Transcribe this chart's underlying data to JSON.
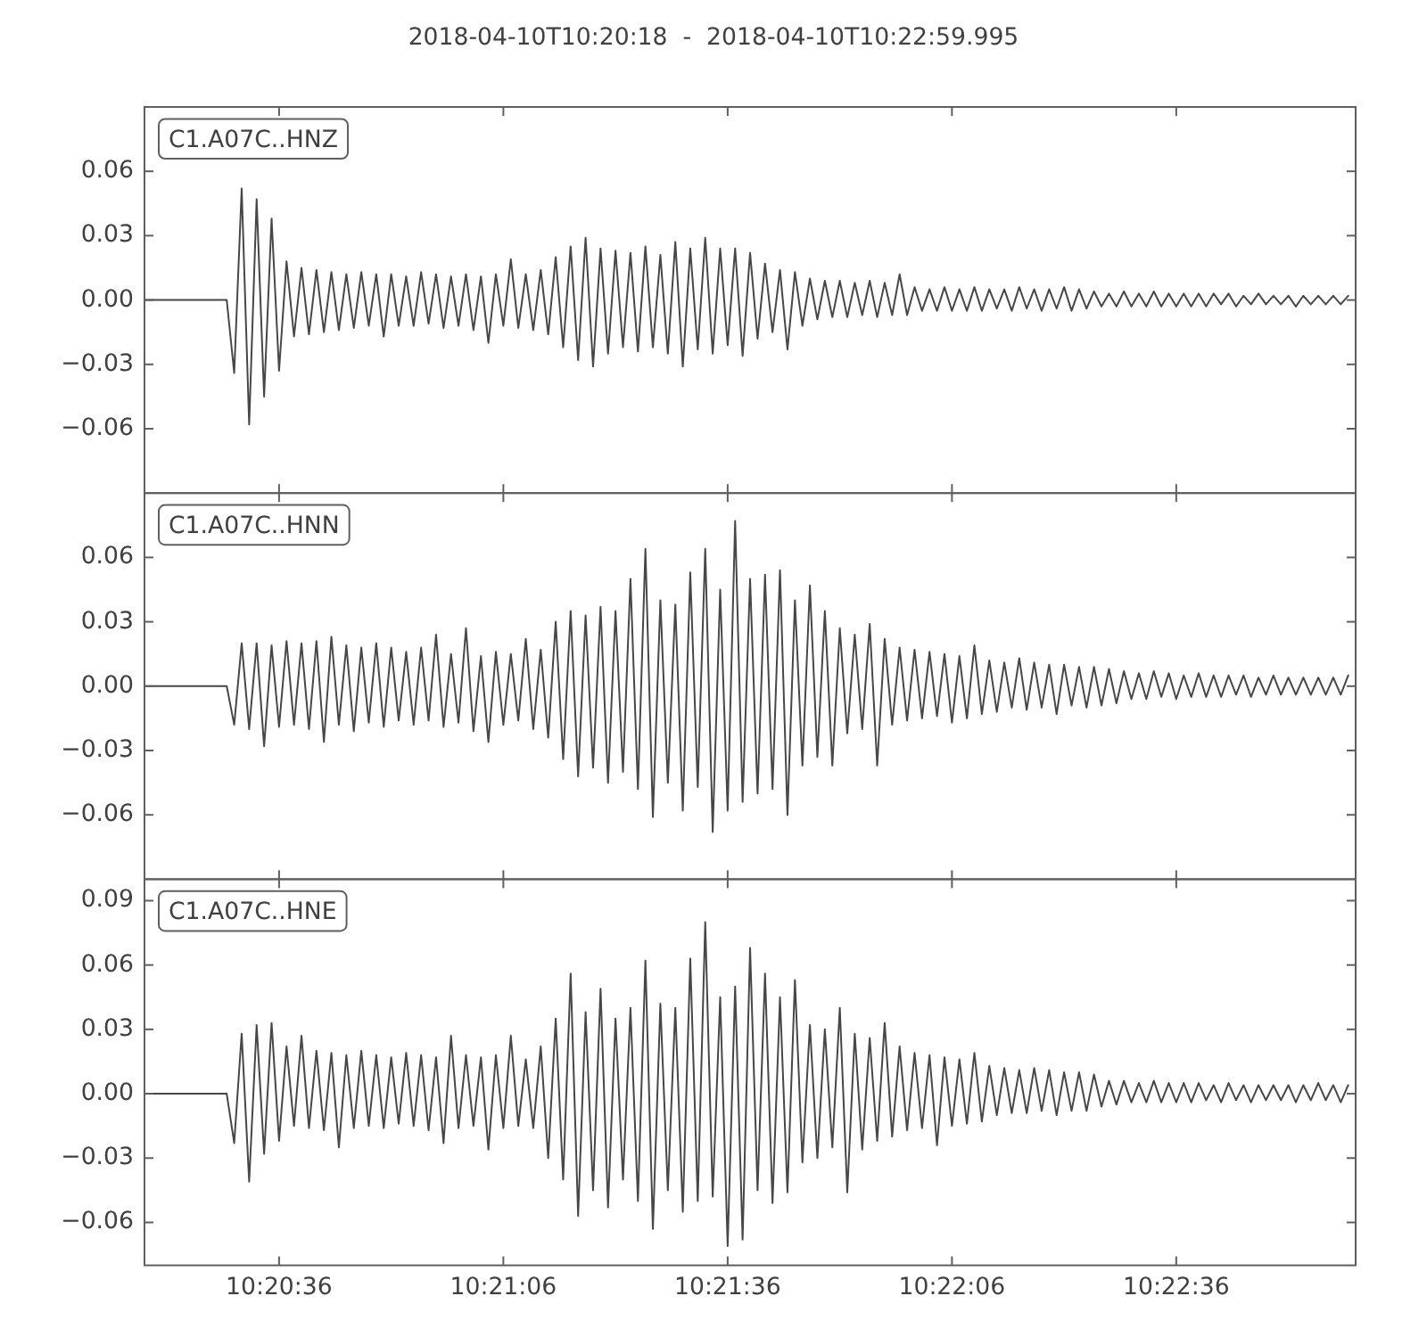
{
  "chart_data": [
    {
      "type": "line",
      "title": "2018-04-10T10:20:18  -  2018-04-10T10:22:59.995",
      "annotations": [
        "C1.A07C..HNZ"
      ],
      "xlim": [
        "2018-04-10T10:20:18",
        "2018-04-10T10:22:59.995"
      ],
      "xticks": [
        {
          "value": "2018-04-10T10:20:36",
          "label": null
        },
        {
          "value": "2018-04-10T10:21:06",
          "label": null
        },
        {
          "value": "2018-04-10T10:21:36",
          "label": null
        },
        {
          "value": "2018-04-10T10:22:06",
          "label": null
        },
        {
          "value": "2018-04-10T10:22:36",
          "label": null
        }
      ],
      "ylim": [
        -0.09,
        0.09
      ],
      "yticks": [
        {
          "value": -0.06,
          "label": "−0.06"
        },
        {
          "value": -0.03,
          "label": "−0.03"
        },
        {
          "value": 0,
          "label": "0.00"
        },
        {
          "value": 0.03,
          "label": "0.03"
        },
        {
          "value": 0.06,
          "label": "0.06"
        }
      ],
      "tick_labels": "y",
      "x": [
        "2018-04-10T10:20:18",
        "2018-04-10T10:20:24",
        "2018-04-10T10:20:29",
        "2018-04-10T10:20:30",
        "2018-04-10T10:20:31",
        "2018-04-10T10:20:32",
        "2018-04-10T10:20:33",
        "2018-04-10T10:20:34",
        "2018-04-10T10:20:35",
        "2018-04-10T10:20:36",
        "2018-04-10T10:20:37",
        "2018-04-10T10:20:38",
        "2018-04-10T10:20:39",
        "2018-04-10T10:20:40",
        "2018-04-10T10:20:41",
        "2018-04-10T10:20:42",
        "2018-04-10T10:20:43",
        "2018-04-10T10:20:44",
        "2018-04-10T10:20:45",
        "2018-04-10T10:20:46",
        "2018-04-10T10:20:47",
        "2018-04-10T10:20:48",
        "2018-04-10T10:20:49",
        "2018-04-10T10:20:50",
        "2018-04-10T10:20:51",
        "2018-04-10T10:20:52",
        "2018-04-10T10:20:53",
        "2018-04-10T10:20:54",
        "2018-04-10T10:20:55",
        "2018-04-10T10:20:56",
        "2018-04-10T10:20:57",
        "2018-04-10T10:20:58",
        "2018-04-10T10:20:59",
        "2018-04-10T10:21:00",
        "2018-04-10T10:21:01",
        "2018-04-10T10:21:02",
        "2018-04-10T10:21:03",
        "2018-04-10T10:21:04",
        "2018-04-10T10:21:05",
        "2018-04-10T10:21:06",
        "2018-04-10T10:21:07",
        "2018-04-10T10:21:08",
        "2018-04-10T10:21:09",
        "2018-04-10T10:21:10",
        "2018-04-10T10:21:11",
        "2018-04-10T10:21:12",
        "2018-04-10T10:21:13",
        "2018-04-10T10:21:14",
        "2018-04-10T10:21:15",
        "2018-04-10T10:21:16",
        "2018-04-10T10:21:17",
        "2018-04-10T10:21:18",
        "2018-04-10T10:21:19",
        "2018-04-10T10:21:20",
        "2018-04-10T10:21:21",
        "2018-04-10T10:21:22",
        "2018-04-10T10:21:23",
        "2018-04-10T10:21:24",
        "2018-04-10T10:21:25",
        "2018-04-10T10:21:26",
        "2018-04-10T10:21:27",
        "2018-04-10T10:21:28",
        "2018-04-10T10:21:29",
        "2018-04-10T10:21:30",
        "2018-04-10T10:21:31",
        "2018-04-10T10:21:32",
        "2018-04-10T10:21:33",
        "2018-04-10T10:21:34",
        "2018-04-10T10:21:35",
        "2018-04-10T10:21:36",
        "2018-04-10T10:21:37",
        "2018-04-10T10:21:38",
        "2018-04-10T10:21:39",
        "2018-04-10T10:21:40",
        "2018-04-10T10:21:41",
        "2018-04-10T10:21:42",
        "2018-04-10T10:21:43",
        "2018-04-10T10:21:44",
        "2018-04-10T10:21:45",
        "2018-04-10T10:21:46",
        "2018-04-10T10:21:47",
        "2018-04-10T10:21:48",
        "2018-04-10T10:21:49",
        "2018-04-10T10:21:50",
        "2018-04-10T10:21:51",
        "2018-04-10T10:21:52",
        "2018-04-10T10:21:53",
        "2018-04-10T10:21:54",
        "2018-04-10T10:21:55",
        "2018-04-10T10:21:56",
        "2018-04-10T10:21:57",
        "2018-04-10T10:21:58",
        "2018-04-10T10:21:59",
        "2018-04-10T10:22:00",
        "2018-04-10T10:22:01",
        "2018-04-10T10:22:02",
        "2018-04-10T10:22:03",
        "2018-04-10T10:22:04",
        "2018-04-10T10:22:05",
        "2018-04-10T10:22:06",
        "2018-04-10T10:22:07",
        "2018-04-10T10:22:08",
        "2018-04-10T10:22:09",
        "2018-04-10T10:22:10",
        "2018-04-10T10:22:11",
        "2018-04-10T10:22:12",
        "2018-04-10T10:22:13",
        "2018-04-10T10:22:14",
        "2018-04-10T10:22:15",
        "2018-04-10T10:22:16",
        "2018-04-10T10:22:17",
        "2018-04-10T10:22:18",
        "2018-04-10T10:22:19",
        "2018-04-10T10:22:20",
        "2018-04-10T10:22:21",
        "2018-04-10T10:22:22",
        "2018-04-10T10:22:23",
        "2018-04-10T10:22:24",
        "2018-04-10T10:22:25",
        "2018-04-10T10:22:26",
        "2018-04-10T10:22:27",
        "2018-04-10T10:22:28",
        "2018-04-10T10:22:29",
        "2018-04-10T10:22:30",
        "2018-04-10T10:22:31",
        "2018-04-10T10:22:32",
        "2018-04-10T10:22:33",
        "2018-04-10T10:22:34",
        "2018-04-10T10:22:35",
        "2018-04-10T10:22:36",
        "2018-04-10T10:22:37",
        "2018-04-10T10:22:38",
        "2018-04-10T10:22:39",
        "2018-04-10T10:22:40",
        "2018-04-10T10:22:41",
        "2018-04-10T10:22:42",
        "2018-04-10T10:22:43",
        "2018-04-10T10:22:44",
        "2018-04-10T10:22:45",
        "2018-04-10T10:22:46",
        "2018-04-10T10:22:47",
        "2018-04-10T10:22:48",
        "2018-04-10T10:22:49",
        "2018-04-10T10:22:50",
        "2018-04-10T10:22:51",
        "2018-04-10T10:22:52",
        "2018-04-10T10:22:53",
        "2018-04-10T10:22:54",
        "2018-04-10T10:22:55",
        "2018-04-10T10:22:56",
        "2018-04-10T10:22:57",
        "2018-04-10T10:22:58",
        "2018-04-10T10:22:59"
      ],
      "series": [
        {
          "color": "#474747",
          "values": [
            0,
            0,
            0,
            -0.034,
            0.052,
            -0.058,
            0.047,
            -0.045,
            0.038,
            -0.033,
            0.018,
            -0.017,
            0.015,
            -0.016,
            0.014,
            -0.015,
            0.013,
            -0.014,
            0.012,
            -0.013,
            0.013,
            -0.012,
            0.012,
            -0.017,
            0.012,
            -0.012,
            0.011,
            -0.012,
            0.013,
            -0.011,
            0.012,
            -0.013,
            0.011,
            -0.012,
            0.012,
            -0.014,
            0.011,
            -0.02,
            0.012,
            -0.012,
            0.019,
            -0.013,
            0.012,
            -0.014,
            0.014,
            -0.016,
            0.02,
            -0.022,
            0.025,
            -0.028,
            0.029,
            -0.031,
            0.024,
            -0.025,
            0.023,
            -0.022,
            0.022,
            -0.024,
            0.025,
            -0.022,
            0.021,
            -0.025,
            0.027,
            -0.031,
            0.024,
            -0.023,
            0.029,
            -0.025,
            0.024,
            -0.021,
            0.024,
            -0.026,
            0.022,
            -0.018,
            0.017,
            -0.015,
            0.014,
            -0.023,
            0.013,
            -0.012,
            0.01,
            -0.009,
            0.009,
            -0.008,
            0.009,
            -0.008,
            0.008,
            -0.007,
            0.009,
            -0.008,
            0.008,
            -0.007,
            0.012,
            -0.007,
            0.006,
            -0.005,
            0.005,
            -0.005,
            0.006,
            -0.005,
            0.005,
            -0.005,
            0.006,
            -0.005,
            0.005,
            -0.004,
            0.005,
            -0.005,
            0.006,
            -0.004,
            0.005,
            -0.005,
            0.005,
            -0.004,
            0.006,
            -0.005,
            0.005,
            -0.004,
            0.004,
            -0.003,
            0.003,
            -0.003,
            0.004,
            -0.003,
            0.003,
            -0.003,
            0.004,
            -0.003,
            0.003,
            -0.003,
            0.003,
            -0.003,
            0.003,
            -0.003,
            0.003,
            -0.002,
            0.003,
            -0.003,
            0.002,
            -0.002,
            0.003,
            -0.002,
            0.002,
            -0.002,
            0.002,
            -0.003,
            0.002,
            -0.002,
            0.002,
            -0.002,
            0.002,
            -0.002,
            0.002
          ]
        }
      ]
    },
    {
      "type": "line",
      "annotations": [
        "C1.A07C..HNN"
      ],
      "xlim": [
        "2018-04-10T10:20:18",
        "2018-04-10T10:22:59.995"
      ],
      "xticks": [
        {
          "value": "2018-04-10T10:20:36",
          "label": null
        },
        {
          "value": "2018-04-10T10:21:06",
          "label": null
        },
        {
          "value": "2018-04-10T10:21:36",
          "label": null
        },
        {
          "value": "2018-04-10T10:22:06",
          "label": null
        },
        {
          "value": "2018-04-10T10:22:36",
          "label": null
        }
      ],
      "ylim": [
        -0.09,
        0.09
      ],
      "yticks": [
        {
          "value": -0.06,
          "label": "−0.06"
        },
        {
          "value": -0.03,
          "label": "−0.03"
        },
        {
          "value": 0,
          "label": "0.00"
        },
        {
          "value": 0.03,
          "label": "0.03"
        },
        {
          "value": 0.06,
          "label": "0.06"
        }
      ],
      "tick_labels": "y",
      "x": [
        "2018-04-10T10:20:18",
        "2018-04-10T10:20:24",
        "2018-04-10T10:20:29",
        "2018-04-10T10:20:30",
        "2018-04-10T10:20:31",
        "2018-04-10T10:20:32",
        "2018-04-10T10:20:33",
        "2018-04-10T10:20:34",
        "2018-04-10T10:20:35",
        "2018-04-10T10:20:36",
        "2018-04-10T10:20:37",
        "2018-04-10T10:20:38",
        "2018-04-10T10:20:39",
        "2018-04-10T10:20:40",
        "2018-04-10T10:20:41",
        "2018-04-10T10:20:42",
        "2018-04-10T10:20:43",
        "2018-04-10T10:20:44",
        "2018-04-10T10:20:45",
        "2018-04-10T10:20:46",
        "2018-04-10T10:20:47",
        "2018-04-10T10:20:48",
        "2018-04-10T10:20:49",
        "2018-04-10T10:20:50",
        "2018-04-10T10:20:51",
        "2018-04-10T10:20:52",
        "2018-04-10T10:20:53",
        "2018-04-10T10:20:54",
        "2018-04-10T10:20:55",
        "2018-04-10T10:20:56",
        "2018-04-10T10:20:57",
        "2018-04-10T10:20:58",
        "2018-04-10T10:20:59",
        "2018-04-10T10:21:00",
        "2018-04-10T10:21:01",
        "2018-04-10T10:21:02",
        "2018-04-10T10:21:03",
        "2018-04-10T10:21:04",
        "2018-04-10T10:21:05",
        "2018-04-10T10:21:06",
        "2018-04-10T10:21:07",
        "2018-04-10T10:21:08",
        "2018-04-10T10:21:09",
        "2018-04-10T10:21:10",
        "2018-04-10T10:21:11",
        "2018-04-10T10:21:12",
        "2018-04-10T10:21:13",
        "2018-04-10T10:21:14",
        "2018-04-10T10:21:15",
        "2018-04-10T10:21:16",
        "2018-04-10T10:21:17",
        "2018-04-10T10:21:18",
        "2018-04-10T10:21:19",
        "2018-04-10T10:21:20",
        "2018-04-10T10:21:21",
        "2018-04-10T10:21:22",
        "2018-04-10T10:21:23",
        "2018-04-10T10:21:24",
        "2018-04-10T10:21:25",
        "2018-04-10T10:21:26",
        "2018-04-10T10:21:27",
        "2018-04-10T10:21:28",
        "2018-04-10T10:21:29",
        "2018-04-10T10:21:30",
        "2018-04-10T10:21:31",
        "2018-04-10T10:21:32",
        "2018-04-10T10:21:33",
        "2018-04-10T10:21:34",
        "2018-04-10T10:21:35",
        "2018-04-10T10:21:36",
        "2018-04-10T10:21:37",
        "2018-04-10T10:21:38",
        "2018-04-10T10:21:39",
        "2018-04-10T10:21:40",
        "2018-04-10T10:21:41",
        "2018-04-10T10:21:42",
        "2018-04-10T10:21:43",
        "2018-04-10T10:21:44",
        "2018-04-10T10:21:45",
        "2018-04-10T10:21:46",
        "2018-04-10T10:21:47",
        "2018-04-10T10:21:48",
        "2018-04-10T10:21:49",
        "2018-04-10T10:21:50",
        "2018-04-10T10:21:51",
        "2018-04-10T10:21:52",
        "2018-04-10T10:21:53",
        "2018-04-10T10:21:54",
        "2018-04-10T10:21:55",
        "2018-04-10T10:21:56",
        "2018-04-10T10:21:57",
        "2018-04-10T10:21:58",
        "2018-04-10T10:21:59",
        "2018-04-10T10:22:00",
        "2018-04-10T10:22:01",
        "2018-04-10T10:22:02",
        "2018-04-10T10:22:03",
        "2018-04-10T10:22:04",
        "2018-04-10T10:22:05",
        "2018-04-10T10:22:06",
        "2018-04-10T10:22:07",
        "2018-04-10T10:22:08",
        "2018-04-10T10:22:09",
        "2018-04-10T10:22:10",
        "2018-04-10T10:22:11",
        "2018-04-10T10:22:12",
        "2018-04-10T10:22:13",
        "2018-04-10T10:22:14",
        "2018-04-10T10:22:15",
        "2018-04-10T10:22:16",
        "2018-04-10T10:22:17",
        "2018-04-10T10:22:18",
        "2018-04-10T10:22:19",
        "2018-04-10T10:22:20",
        "2018-04-10T10:22:21",
        "2018-04-10T10:22:22",
        "2018-04-10T10:22:23",
        "2018-04-10T10:22:24",
        "2018-04-10T10:22:25",
        "2018-04-10T10:22:26",
        "2018-04-10T10:22:27",
        "2018-04-10T10:22:28",
        "2018-04-10T10:22:29",
        "2018-04-10T10:22:30",
        "2018-04-10T10:22:31",
        "2018-04-10T10:22:32",
        "2018-04-10T10:22:33",
        "2018-04-10T10:22:34",
        "2018-04-10T10:22:35",
        "2018-04-10T10:22:36",
        "2018-04-10T10:22:37",
        "2018-04-10T10:22:38",
        "2018-04-10T10:22:39",
        "2018-04-10T10:22:40",
        "2018-04-10T10:22:41",
        "2018-04-10T10:22:42",
        "2018-04-10T10:22:43",
        "2018-04-10T10:22:44",
        "2018-04-10T10:22:45",
        "2018-04-10T10:22:46",
        "2018-04-10T10:22:47",
        "2018-04-10T10:22:48",
        "2018-04-10T10:22:49",
        "2018-04-10T10:22:50",
        "2018-04-10T10:22:51",
        "2018-04-10T10:22:52",
        "2018-04-10T10:22:53",
        "2018-04-10T10:22:54",
        "2018-04-10T10:22:55",
        "2018-04-10T10:22:56",
        "2018-04-10T10:22:57",
        "2018-04-10T10:22:58",
        "2018-04-10T10:22:59"
      ],
      "series": [
        {
          "color": "#474747",
          "values": [
            0,
            0,
            0,
            -0.018,
            0.02,
            -0.02,
            0.02,
            -0.028,
            0.019,
            -0.019,
            0.021,
            -0.018,
            0.02,
            -0.02,
            0.021,
            -0.026,
            0.023,
            -0.018,
            0.019,
            -0.021,
            0.018,
            -0.017,
            0.02,
            -0.019,
            0.018,
            -0.016,
            0.016,
            -0.018,
            0.018,
            -0.016,
            0.024,
            -0.019,
            0.015,
            -0.017,
            0.027,
            -0.021,
            0.014,
            -0.026,
            0.016,
            -0.018,
            0.015,
            -0.016,
            0.022,
            -0.02,
            0.017,
            -0.024,
            0.03,
            -0.034,
            0.035,
            -0.042,
            0.033,
            -0.038,
            0.037,
            -0.045,
            0.035,
            -0.04,
            0.05,
            -0.048,
            0.064,
            -0.061,
            0.04,
            -0.045,
            0.038,
            -0.058,
            0.053,
            -0.047,
            0.064,
            -0.068,
            0.045,
            -0.058,
            0.077,
            -0.054,
            0.05,
            -0.05,
            0.052,
            -0.048,
            0.054,
            -0.06,
            0.04,
            -0.037,
            0.047,
            -0.033,
            0.035,
            -0.037,
            0.027,
            -0.022,
            0.024,
            -0.02,
            0.029,
            -0.037,
            0.022,
            -0.018,
            0.018,
            -0.016,
            0.017,
            -0.015,
            0.016,
            -0.014,
            0.015,
            -0.017,
            0.014,
            -0.015,
            0.019,
            -0.013,
            0.012,
            -0.012,
            0.011,
            -0.01,
            0.013,
            -0.011,
            0.011,
            -0.01,
            0.01,
            -0.013,
            0.01,
            -0.009,
            0.009,
            -0.01,
            0.009,
            -0.009,
            0.008,
            -0.008,
            0.007,
            -0.006,
            0.006,
            -0.006,
            0.007,
            -0.005,
            0.006,
            -0.006,
            0.005,
            -0.005,
            0.006,
            -0.005,
            0.005,
            -0.005,
            0.005,
            -0.004,
            0.005,
            -0.005,
            0.004,
            -0.004,
            0.005,
            -0.004,
            0.004,
            -0.004,
            0.004,
            -0.004,
            0.004,
            -0.004,
            0.004,
            -0.004,
            0.005
          ]
        }
      ]
    },
    {
      "type": "line",
      "annotations": [
        "C1.A07C..HNE"
      ],
      "xlim": [
        "2018-04-10T10:20:18",
        "2018-04-10T10:22:59.995"
      ],
      "xticks": [
        {
          "value": "2018-04-10T10:20:36",
          "label": "10:20:36"
        },
        {
          "value": "2018-04-10T10:21:06",
          "label": "10:21:06"
        },
        {
          "value": "2018-04-10T10:21:36",
          "label": "10:21:36"
        },
        {
          "value": "2018-04-10T10:22:06",
          "label": "10:22:06"
        },
        {
          "value": "2018-04-10T10:22:36",
          "label": "10:22:36"
        }
      ],
      "ylim": [
        -0.08,
        0.1
      ],
      "yticks": [
        {
          "value": -0.06,
          "label": "−0.06"
        },
        {
          "value": -0.03,
          "label": "−0.03"
        },
        {
          "value": 0,
          "label": "0.00"
        },
        {
          "value": 0.03,
          "label": "0.03"
        },
        {
          "value": 0.06,
          "label": "0.06"
        },
        {
          "value": 0.09,
          "label": "0.09"
        }
      ],
      "x": [
        "2018-04-10T10:20:18",
        "2018-04-10T10:20:24",
        "2018-04-10T10:20:29",
        "2018-04-10T10:20:30",
        "2018-04-10T10:20:31",
        "2018-04-10T10:20:32",
        "2018-04-10T10:20:33",
        "2018-04-10T10:20:34",
        "2018-04-10T10:20:35",
        "2018-04-10T10:20:36",
        "2018-04-10T10:20:37",
        "2018-04-10T10:20:38",
        "2018-04-10T10:20:39",
        "2018-04-10T10:20:40",
        "2018-04-10T10:20:41",
        "2018-04-10T10:20:42",
        "2018-04-10T10:20:43",
        "2018-04-10T10:20:44",
        "2018-04-10T10:20:45",
        "2018-04-10T10:20:46",
        "2018-04-10T10:20:47",
        "2018-04-10T10:20:48",
        "2018-04-10T10:20:49",
        "2018-04-10T10:20:50",
        "2018-04-10T10:20:51",
        "2018-04-10T10:20:52",
        "2018-04-10T10:20:53",
        "2018-04-10T10:20:54",
        "2018-04-10T10:20:55",
        "2018-04-10T10:20:56",
        "2018-04-10T10:20:57",
        "2018-04-10T10:20:58",
        "2018-04-10T10:20:59",
        "2018-04-10T10:21:00",
        "2018-04-10T10:21:01",
        "2018-04-10T10:21:02",
        "2018-04-10T10:21:03",
        "2018-04-10T10:21:04",
        "2018-04-10T10:21:05",
        "2018-04-10T10:21:06",
        "2018-04-10T10:21:07",
        "2018-04-10T10:21:08",
        "2018-04-10T10:21:09",
        "2018-04-10T10:21:10",
        "2018-04-10T10:21:11",
        "2018-04-10T10:21:12",
        "2018-04-10T10:21:13",
        "2018-04-10T10:21:14",
        "2018-04-10T10:21:15",
        "2018-04-10T10:21:16",
        "2018-04-10T10:21:17",
        "2018-04-10T10:21:18",
        "2018-04-10T10:21:19",
        "2018-04-10T10:21:20",
        "2018-04-10T10:21:21",
        "2018-04-10T10:21:22",
        "2018-04-10T10:21:23",
        "2018-04-10T10:21:24",
        "2018-04-10T10:21:25",
        "2018-04-10T10:21:26",
        "2018-04-10T10:21:27",
        "2018-04-10T10:21:28",
        "2018-04-10T10:21:29",
        "2018-04-10T10:21:30",
        "2018-04-10T10:21:31",
        "2018-04-10T10:21:32",
        "2018-04-10T10:21:33",
        "2018-04-10T10:21:34",
        "2018-04-10T10:21:35",
        "2018-04-10T10:21:36",
        "2018-04-10T10:21:37",
        "2018-04-10T10:21:38",
        "2018-04-10T10:21:39",
        "2018-04-10T10:21:40",
        "2018-04-10T10:21:41",
        "2018-04-10T10:21:42",
        "2018-04-10T10:21:43",
        "2018-04-10T10:21:44",
        "2018-04-10T10:21:45",
        "2018-04-10T10:21:46",
        "2018-04-10T10:21:47",
        "2018-04-10T10:21:48",
        "2018-04-10T10:21:49",
        "2018-04-10T10:21:50",
        "2018-04-10T10:21:51",
        "2018-04-10T10:21:52",
        "2018-04-10T10:21:53",
        "2018-04-10T10:21:54",
        "2018-04-10T10:21:55",
        "2018-04-10T10:21:56",
        "2018-04-10T10:21:57",
        "2018-04-10T10:21:58",
        "2018-04-10T10:21:59",
        "2018-04-10T10:22:00",
        "2018-04-10T10:22:01",
        "2018-04-10T10:22:02",
        "2018-04-10T10:22:03",
        "2018-04-10T10:22:04",
        "2018-04-10T10:22:05",
        "2018-04-10T10:22:06",
        "2018-04-10T10:22:07",
        "2018-04-10T10:22:08",
        "2018-04-10T10:22:09",
        "2018-04-10T10:22:10",
        "2018-04-10T10:22:11",
        "2018-04-10T10:22:12",
        "2018-04-10T10:22:13",
        "2018-04-10T10:22:14",
        "2018-04-10T10:22:15",
        "2018-04-10T10:22:16",
        "2018-04-10T10:22:17",
        "2018-04-10T10:22:18",
        "2018-04-10T10:22:19",
        "2018-04-10T10:22:20",
        "2018-04-10T10:22:21",
        "2018-04-10T10:22:22",
        "2018-04-10T10:22:23",
        "2018-04-10T10:22:24",
        "2018-04-10T10:22:25",
        "2018-04-10T10:22:26",
        "2018-04-10T10:22:27",
        "2018-04-10T10:22:28",
        "2018-04-10T10:22:29",
        "2018-04-10T10:22:30",
        "2018-04-10T10:22:31",
        "2018-04-10T10:22:32",
        "2018-04-10T10:22:33",
        "2018-04-10T10:22:34",
        "2018-04-10T10:22:35",
        "2018-04-10T10:22:36",
        "2018-04-10T10:22:37",
        "2018-04-10T10:22:38",
        "2018-04-10T10:22:39",
        "2018-04-10T10:22:40",
        "2018-04-10T10:22:41",
        "2018-04-10T10:22:42",
        "2018-04-10T10:22:43",
        "2018-04-10T10:22:44",
        "2018-04-10T10:22:45",
        "2018-04-10T10:22:46",
        "2018-04-10T10:22:47",
        "2018-04-10T10:22:48",
        "2018-04-10T10:22:49",
        "2018-04-10T10:22:50",
        "2018-04-10T10:22:51",
        "2018-04-10T10:22:52",
        "2018-04-10T10:22:53",
        "2018-04-10T10:22:54",
        "2018-04-10T10:22:55",
        "2018-04-10T10:22:56",
        "2018-04-10T10:22:57",
        "2018-04-10T10:22:58",
        "2018-04-10T10:22:59"
      ],
      "series": [
        {
          "color": "#474747",
          "values": [
            0,
            0,
            0,
            -0.023,
            0.028,
            -0.041,
            0.032,
            -0.028,
            0.033,
            -0.022,
            0.022,
            -0.015,
            0.027,
            -0.016,
            0.02,
            -0.017,
            0.019,
            -0.025,
            0.018,
            -0.016,
            0.02,
            -0.015,
            0.018,
            -0.016,
            0.017,
            -0.014,
            0.019,
            -0.015,
            0.018,
            -0.017,
            0.017,
            -0.023,
            0.027,
            -0.016,
            0.018,
            -0.015,
            0.017,
            -0.026,
            0.018,
            -0.016,
            0.027,
            -0.015,
            0.016,
            -0.016,
            0.022,
            -0.03,
            0.035,
            -0.04,
            0.056,
            -0.057,
            0.038,
            -0.045,
            0.049,
            -0.053,
            0.035,
            -0.04,
            0.04,
            -0.05,
            0.062,
            -0.063,
            0.042,
            -0.045,
            0.04,
            -0.055,
            0.063,
            -0.05,
            0.08,
            -0.048,
            0.045,
            -0.071,
            0.05,
            -0.068,
            0.068,
            -0.045,
            0.056,
            -0.051,
            0.045,
            -0.046,
            0.053,
            -0.032,
            0.032,
            -0.03,
            0.03,
            -0.025,
            0.04,
            -0.046,
            0.028,
            -0.026,
            0.026,
            -0.022,
            0.033,
            -0.02,
            0.022,
            -0.017,
            0.019,
            -0.016,
            0.018,
            -0.024,
            0.017,
            -0.015,
            0.016,
            -0.014,
            0.019,
            -0.013,
            0.013,
            -0.01,
            0.012,
            -0.009,
            0.011,
            -0.009,
            0.012,
            -0.008,
            0.011,
            -0.01,
            0.01,
            -0.008,
            0.01,
            -0.008,
            0.009,
            -0.006,
            0.006,
            -0.005,
            0.006,
            -0.004,
            0.005,
            -0.004,
            0.006,
            -0.004,
            0.005,
            -0.004,
            0.005,
            -0.004,
            0.005,
            -0.003,
            0.004,
            -0.004,
            0.005,
            -0.003,
            0.004,
            -0.004,
            0.004,
            -0.003,
            0.004,
            -0.003,
            0.004,
            -0.004,
            0.004,
            -0.003,
            0.005,
            -0.003,
            0.004,
            -0.004,
            0.004
          ]
        }
      ]
    }
  ]
}
